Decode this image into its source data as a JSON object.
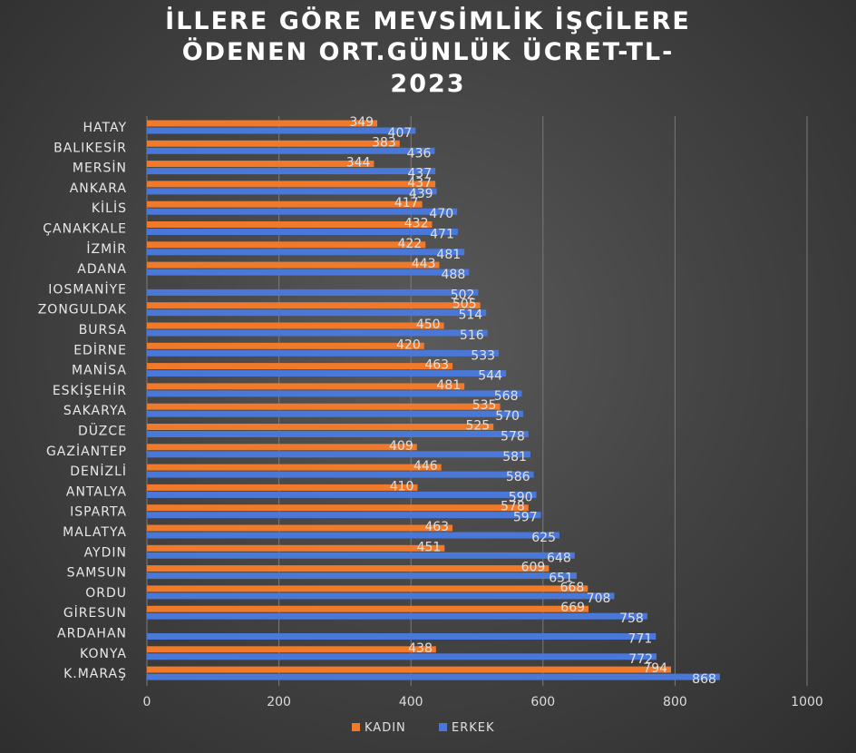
{
  "chart_data": {
    "type": "bar",
    "orientation": "horizontal",
    "title_lines": [
      "İLLERE GÖRE MEVSİMLİK İŞÇİLERE",
      "ÖDENEN ORT.GÜNLÜK ÜCRET-TL-",
      "2023"
    ],
    "categories": [
      "HATAY",
      "BALIKESİR",
      "MERSİN",
      "ANKARA",
      "KİLİS",
      "ÇANAKKALE",
      "İZMİR",
      "ADANA",
      "IOSMANİYE",
      "ZONGULDAK",
      "BURSA",
      "EDİRNE",
      "MANİSA",
      "ESKİŞEHİR",
      "SAKARYA",
      "DÜZCE",
      "GAZİANTEP",
      "DENİZLİ",
      "ANTALYA",
      "ISPARTA",
      "MALATYA",
      "AYDIN",
      "SAMSUN",
      "ORDU",
      "GİRESUN",
      "ARDAHAN",
      "KONYA",
      "K.MARAŞ"
    ],
    "series": [
      {
        "name": "KADIN",
        "color": "#f07a2a",
        "values": [
          349,
          383,
          344,
          437,
          417,
          432,
          422,
          443,
          null,
          505,
          450,
          420,
          463,
          481,
          535,
          525,
          409,
          446,
          410,
          578,
          463,
          451,
          609,
          668,
          669,
          null,
          438,
          794
        ]
      },
      {
        "name": "ERKEK",
        "color": "#4a78d8",
        "values": [
          407,
          436,
          437,
          439,
          470,
          471,
          481,
          488,
          502,
          514,
          516,
          533,
          544,
          568,
          570,
          578,
          581,
          586,
          590,
          597,
          625,
          648,
          651,
          708,
          758,
          771,
          772,
          868
        ]
      }
    ],
    "xlim": [
      0,
      1000
    ],
    "xticks": [
      "0",
      "200",
      "400",
      "600",
      "800",
      "1000"
    ],
    "grid": true,
    "legend_position": "bottom"
  }
}
